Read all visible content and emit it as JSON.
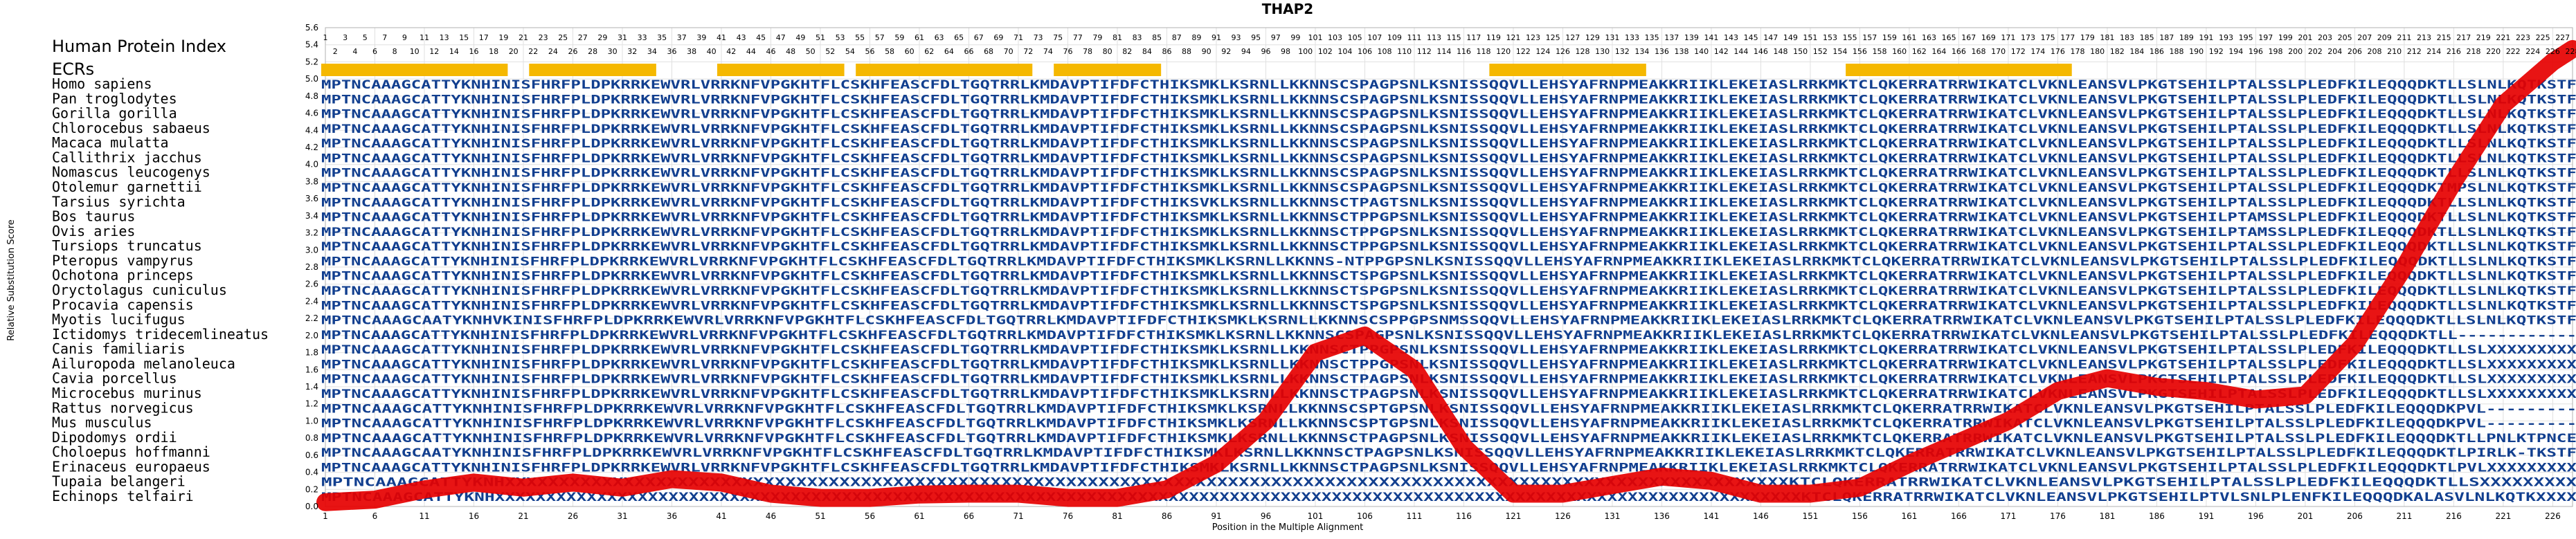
{
  "chart_data": {
    "type": "line",
    "title": "THAP2",
    "xlabel": "Position in the Multiple Alignment",
    "ylabel": "Relative Substitution Score",
    "xlim": [
      1,
      228
    ],
    "ylim": [
      0,
      5.6
    ],
    "grid": true,
    "header_labels": {
      "hpi": "Human Protein Index",
      "ecrs": "ECRs"
    },
    "x_ticks": [
      1,
      6,
      11,
      16,
      21,
      26,
      31,
      36,
      41,
      46,
      51,
      56,
      61,
      66,
      71,
      76,
      81,
      86,
      91,
      96,
      101,
      106,
      111,
      116,
      121,
      126,
      131,
      136,
      141,
      146,
      151,
      156,
      161,
      166,
      171,
      176,
      181,
      186,
      191,
      196,
      201,
      206,
      211,
      216,
      221,
      226
    ],
    "y_ticks": [
      0,
      0.2,
      0.4,
      0.6,
      0.8,
      1.0,
      1.2,
      1.4,
      1.6,
      1.8,
      2.0,
      2.2,
      2.4,
      2.6,
      2.8,
      3.0,
      3.2,
      3.4,
      3.6,
      3.8,
      4.0,
      4.2,
      4.4,
      4.6,
      4.8,
      5.0,
      5.2,
      5.4,
      5.6
    ],
    "hpi_range": [
      1,
      228
    ],
    "ecr_ranges": [
      [
        1,
        19
      ],
      [
        22,
        34
      ],
      [
        41,
        53
      ],
      [
        55,
        72
      ],
      [
        75,
        85
      ],
      [
        119,
        134
      ],
      [
        155,
        177
      ]
    ],
    "species": [
      {
        "name": "Homo sapiens",
        "sequence": "MPTNCAAAGCATTYKNHINISFHRFPLDPKRRKEWVRLVRRKNFVPGKHTFLCSKHFEASCFDLTGQTRRLKMDAVPTIFDFCTHIKSMKLKSRNLLKKNNSCSPAGPSNLKSNISSQQVLLEHSYAFRNPMEAKKRIIKLEKEIASLRRKMKTCLQKERRATRRWIKATCLVKNLEANSVLPKGTSEHILPTALSSLPLEDFKILEQQQDKTLLSLNLKQTKSTF"
      },
      {
        "name": "Pan troglodytes",
        "sequence": "MPTNCAAAGCATTYKNHINISFHRFPLDPKRRKEWVRLVRRKNFVPGKHTFLCSKHFEASCFDLTGQTRRLKMDAVPTIFDFCTHIKSMKLKSRNLLKKNNSCSPAGPSNLKSNISSQQVLLEHSYAFRNPMEAKKRIIKLEKEIASLRRKMKTCLQKERRATRRWIKATCLVKNLEANSVLPKGTSEHILPTALSSLPLEDFKILEQQQDKTLLSLNLKQTKSTF"
      },
      {
        "name": "Gorilla gorilla",
        "sequence": "MPTNCAAAGCATTYKNHINISFHRFPLDPKRRKEWVRLVRRKNFVPGKHTFLCSKHFEASCFDLTGQTRRLKMDAVPTIFDFCTHIKSMKLKSRNLLKKNNSCSPAGPSNLKSNISSQQVLLEHSYAFRNPMEAKKRIIKLEKEIASLRRKMKTCLQKERRATRRWIKATCLVKNLEANSVLPKGTSEHILPTALSSLPLEDFKILEQQQDKTLLSLNLKQTKSTF"
      },
      {
        "name": "Chlorocebus sabaeus",
        "sequence": "MPTNCAAAGCATTYKNHINISFHRFPLDPKRRKEWVRLVRRKNFVPGKHTFLCSKHFEASCFDLTGQTRRLKMDAVPTIFDFCTHIKSMKLKSRNLLKKNNSCSPAGPSNLKSNISSQQVLLEHSYAFRNPMEAKKRIIKLEKEIASLRRKMKTCLQKERRATRRWIKATCLVKNLEANSVLPKGTSEHILPTALSSLPLEDFKILEQQQDKTLLSLNLKQTKSTF"
      },
      {
        "name": "Macaca mulatta",
        "sequence": "MPTNCAAAGCATTYKNHINISFHRFPLDPKRRKEWVRLVRRKNFVPGKHTFLCSKHFEASCFDLTGQTRRLKMDAVPTIFDFCTHIKSMKLKSRNLLKKNNSCSPAGPSNLKSNISSQQVLLEHSYAFRNPMEAKKRIIKLEKEIASLRRKMKTCLQKERRATRRWIKATCLVKNLEANSVLPKGTSEHILPTALSSLPLEDFKILEQQQDKTLLSLNLKQTKSTF"
      },
      {
        "name": "Callithrix jacchus",
        "sequence": "MPTNCAAAGCATTYKNHINISFHRFPLDPKRRKEWVRLVRRKNFVPGKHTFLCSKHFEASCFDLTGQTRRLKMDAVPTIFDFCTHIKSMKLKSRNLLKKNNSCSPAGPSNLKSNISSQQVLLEHSYAFRNPMEAKKRIIKLEKEIASLRRKMKTCLQKERRATRRWIKATCLVKNLEANSVLPKGTSEHILPTALSSLPLEDFKILEQQQDKTLLSLNLKQTKSTF"
      },
      {
        "name": "Nomascus leucogenys",
        "sequence": "MPTNCAAAGCATTYKNHINISFHRFPLDPKRRKEWVRLVRRKNFVPGKHTFLCSKHFEASCFDLTGQTRRLKMDAVPTIFDFCTHIKSMKLKSRNLLKKNNSCSPAGPSNLKSNISSQQVLLEHSYAFRNPMEAKKRIIKLEKEIASLRRKMKTCLQKERRATRRWIKATCLVKNLEANSVLPKGTSEHILPTALSSLPLEDFKILEQQQDKTLLSLNLKQTKSTF"
      },
      {
        "name": "Otolemur garnettii",
        "sequence": "MPTNCAAAGCATTYKNHINISFHRFPLDPKRRKEWVRLVRRKNFVPGKHTFLCSKHFEASCFDLTGQTRRLKMDAVPTIFDFCTHIKSMKLKSRNLLKKNNSCSPAGPSNLKSNISSQQVLLEHSYAFRNPMEAKKRIIKLEKEIASLRRKMKTCLQKERRATRRWIKATCLVKNLEANSVLPKGTSEHILPTALSSLPLEDFKILEQQQDKTMPSLNLKQTKSTF"
      },
      {
        "name": "Tarsius syrichta",
        "sequence": "MPTNCAAAGCATTYKNHINISFHRFPLDPKRRKEWVRLVRRKNFVPGKHTFLCSKHFEASCFDLTGQTRRLKMDAVPTIFDFCTHIKSVKLKSRNLLKKNNSCTPAGTSNLKSNISSQQVLLEHSYAFRNPMEAKKRIIKLEKEIASLRRKMKTCLQKERRATRRWIKATCLVKNLEANSVLPKGTSEHILPTALSSLPLEDFKILEQQQDKTLLSLNLKQTKSTF"
      },
      {
        "name": "Bos taurus",
        "sequence": "MPTNCAAAGCATTYKNHINISFHRFPLDPKRRKEWVRLVRRKNFVPGKHTFLCSKHFEASCFDLTGQTRRLKMDAVPTIFDFCTHIKSMKLKSRNLLKKNNSCTPPGPSNLKSNISSQQVLLEHSYAFRNPMEAKKRIIKLEKEIASLRRKMKTCLQKERRATRRWIKATCLVKNLEANSVLPKGTSEHILPTAMSSLPLEDFKILEQQQDKTLLSLNLKQTKSTF"
      },
      {
        "name": "Ovis aries",
        "sequence": "MPTNCAAAGCATTYKNHINISFHRFPLDPKRRKEWVRLVRRKNFVPGKHTFLCSKHFEASCFDLTGQTRRLKMDAVPTIFDFCTHIKSMKLKSRNLLKKNNSCTPPGPSNLKSNISSQQVLLEHSYAFRNPMEAKKRIIKLEKEIASLRRKMKTCLQKERRATRRWIKATCLVKNLEANSVLPKGTSEHILPTAMSSLPLEDFKILEQQQDKTLLSLNLKQTKSTF"
      },
      {
        "name": "Tursiops truncatus",
        "sequence": "MPTNCAAAGCATTYKNHINISFHRFPLDPKRRKEWVRLVRRKNFVPGKHTFLCSKHFEASCFDLTGQTRRLKMDAVPTIFDFCTHIKSMKLKSRNLLKKNNSCTPPGPSNLKSNISSQQVLLEHSYAFRNPMEAKKRIIKLEKEIASLRRKMKTCLQKERRATRRWIKATCLVKNLEANSVLPKGTSEHILPTALSSLPLEDFKILEQQQDKTLLSLNLKQTKSTF"
      },
      {
        "name": "Pteropus vampyrus",
        "sequence": "MPTNCAAAGCATTYKNHINISFHRFPLDPKRRKEWVRLVRRKNFVPGKHTFLCSKHFEASCFDLTGQTRRLKMDAVPTIFDFCTHIKSMKLKSRNLLKKNNS-NTPPGPSNLKSNISSQQVLLEHSYAFRNPMEAKKRIIKLEKEIASLRRKMKTCLQKERRATRRWIKATCLVKNLEANSVLPKGTSEHILPTALSSLPLEDFKILEQQQDKTLLSLNLKQTKSTF"
      },
      {
        "name": "Ochotona princeps",
        "sequence": "MPTNCAAAGCATTYKNHINISFHRFPLDPKRRKEWVRLVRRKNFVPGKHTFLCSKHFEASCFDLTGQTRRLKMDAVPTIFDFCTHIKSMKLKSRNLLKKNNSCTSPGPSNLKSNISSQQVLLEHSYAFRNPMEAKKRIIKLEKEIASLRRKMKTCLQKERRATRRWIKATCLVKNLEANSVLPKGTSEHILPTALSSLPLEDFKILEQQQDKTLLSLNLKQTKSTF"
      },
      {
        "name": "Oryctolagus cuniculus",
        "sequence": "MPTNCAAAGCATTYKNHINISFHRFPLDPKRRKEWVRLVRRKNFVPGKHTFLCSKHFEASCFDLTGQTRRLKMDAVPTIFDFCTHIKSMKLKSRNLLKKNNSCTSPGPSNLKSNISSQQVLLEHSYAFRNPMEAKKRIIKLEKEIASLRRKMKTCLQKERRATRRWIKATCLVKNLEANSVLPKGTSEHILPTALSSLPLEDFKILEQQQDKTLLSLNLKQTKSTF"
      },
      {
        "name": "Procavia capensis",
        "sequence": "MPTNCAAAGCATTYKNHINISFHRFPLDPKRRKEWVRLVRRKNFVPGKHTFLCSKHFEASCFDLTGQTRRLKMDAVPTIFDFCTHIKSMKLKSRNLLKKNNSCTSPGPSNLKSNISSQQVLLEHSYAFRNPMEAKKRIIKLEKEIASLRRKMKTCLQKERRATRRWIKATCLVKNLEANSVLPKGTSEHILPTALSSLPLEDFKILEQQQDKTLLSLNLKQTKSTF"
      },
      {
        "name": "Myotis lucifugus",
        "sequence": "MPTNCAAAGCAATYKNHVKINISFHRFPLDPKRRKEWVRLVRRKNFVPGKHTFLCSKHFEASCFDLTGQTRRLKMDAVPTIFDFCTHIKSMKLKSRNLLKKNNSCSPPGPSNMSSQQVLLEHSYAFRNPMEAKKRIIKLEKEIASLRRKMKTCLQKERRATRRWIKATCLVKNLEANSVLPKGTSEHILPTALSSLPLEDFKILEQQQDKTLLSLNLKQTKSTF"
      },
      {
        "name": "Ictidomys tridecemlineatus",
        "sequence": "MPTNCAAAGCATTYKNHINISFHRFPLDPKRRKEWVRLVRRKNFVPGKHTFLCSKHFEASCFDLTGQTRRLKMDAVPTIFDFCTHIKSMKLKSRNLLKKNNSCSPAGPSNLKSNISSQQVLLEHSYAFRNPMEAKKRIIKLEKEIASLRRKMKTCLQKERRATRRWIKATCLVKNLEANSVLPKGTSEHILPTALSSLPLEDFKILEQQQDKTLL------------"
      },
      {
        "name": "Canis familiaris",
        "sequence": "MPTNCAAAGCATTYKNHINISFHRFPLDPKRRKEWVRLVRRKNFVPGKHTFLCSKHFEASCFDLTGQTRRLKMDAVPTIFDFCTHIKSMKLKSRNLLKKNNSCTPPGPSNLKSNISSQQVLLEHSYAFRNPMEAKKRIIKLEKEIASLRRKMKTCLQKERRATRRWIKATCLVKNLEANSVLPKGTSEHILPTALSSLPLEDFKILEQQQDKTLLSLXXXXXXXXX"
      },
      {
        "name": "Ailuropoda melanoleuca",
        "sequence": "MPTNCAAAGCATTYKNHINISFHRFPLDPKRRKEWVRLVRRKNFVPGKHTFLCSKHFEASCFDLTGQTRRLKMDAVPTIFDFCTHIKSMKLKSRNLLKKNNSCTPPGPSNLKSNISSQQVLLEHSYAFRNPMEAKKRIIKLEKEIASLRRKMKTCLQKERRATRRWIKATCLVKNLEANSVLPKGTSEHILPTALSSLPLEDFKILEQQQDKTLLSLXXXXXXXXX"
      },
      {
        "name": "Cavia porcellus",
        "sequence": "MPTNCAAAGCATTYKNHINISFHRFPLDPKRRKEWVRLVRRKNFVPGKHTFLCSKHFEASCFDLTGQTRRLKMDAVPTIFDFCTHIKSMKLKSRNLLKKNNSCTPAGPSNLKSNISSQQVLLEHSYAFRNPMEAKKRIIKLEKEIASLRRKMKTCLQKERRATRRWIKATCLVKNLEANSVLPKGTSEHILPTALSSLPLEDFKILEQQQDKTLLSLXXXXXXXXX"
      },
      {
        "name": "Microcebus murinus",
        "sequence": "MPTNCAAAGCATTYKNHINISFHRFPLDPKRRKEWVRLVRRKNFVPGKHTFLCSKHFEASCFDLTGQTRRLKMDAVPTIFDFCTHIKSMKLKSRNLLKKNNSCTPAGPSNLKSNISSQQVLLEHSYAFRNPMEAKKRIIKLEKEIASLRRKMKTCLQKERRATRRWIKATCLVKNLEANSVLPKGTSEHILPTALSSLPLEDFKILEQQQDKTLLSLXXXXXXXXX"
      },
      {
        "name": "Rattus norvegicus",
        "sequence": "MPTNCAAAGCATTYKNHINISFHRFPLDPKRRKEWVRLVRRKNFVPGKHTFLCSKHFEASCFDLTGQTRRLKMDAVPTIFDFCTHIKSMKLKSRNLLKKNNSCSPTGPSNLKSNISSQQVLLEHSYAFRNPMEAKKRIIKLEKEIASLRRKMKTCLQKERRATRRWIKATCLVKNLEANSVLPKGTSEHILPTALSSLPLEDFKILEQQQDKPVL---------"
      },
      {
        "name": "Mus musculus",
        "sequence": "MPTNCAAAGCATTYKNHINISFHRFPLDPKRRKEWVRLVRRKNFVPGKHTFLCSKHFEASCFDLTGQTRRLKMDAVPTIFDFCTHIKSMKLKSRNLLKKNNSCSPTGPSNLKSNISSQQVLLEHSYAFRNPMEAKKRIIKLEKEIASLRRKMKTCLQKERRATRRWIKATCLVKNLEANSVLPKGTSEHILPTALSSLPLEDFKILEQQQDKPVL---------"
      },
      {
        "name": "Dipodomys ordii",
        "sequence": "MPTNCAAAGCATTYKNHINISFHRFPLDPKRRKEWVRLVRRKNFVPGKHTFLCSKHFEASCFDLTGQTRRLKMDAVPTIFDFCTHIKSMKLKSRNLLKKNNSCTPAGPSNLKSNISSQQVLLEHSYAFRNPMEAKKRIIKLEKEIASLRRKMKTCLQKERRATRRWIKATCLVKNLEANSVLPKGTSEHILPTALSSLPLEDFKILEQQQDKTLLPNLKTPNCE"
      },
      {
        "name": "Choloepus hoffmanni",
        "sequence": "MPTNCAAAGCAATYKNHINISFHRFPLDPKRRKEWVRLVRRKNFVPGKHTFLCSKHFEASCFDLTGQTRRLKMDAVPTIFDFCTHIKSMKLKSRNLLKKNNSCTPAGPSNLKSNISSQQVLLEHSYAFRNPMEAKKRIIKLEKEIASLRRKMKTCLQKERRATRRWIKATCLVKNLEANSVLPKGTSEHILPTALSSLPLEDFKILEQQQDKTLPIRLK-TKSTF"
      },
      {
        "name": "Erinaceus europaeus",
        "sequence": "MPTNCAAAGCATTYKNHINISFHRFPLDPKRRKEWVRLVRRKNFVPGKHTFLCSKHFEASCFDLTGQTRRLKMDAVPTIFDFCTHIKSMKLKSRNLLKKNNSCTPAGPSNLKSNISSQQVLLEHSYAFRNPMEAKKRIIKLEKEIASLRRKMKTCLQKERRATRRWIKATCLVKNLEANSVLPKGTSEHILPTALSSLPLEDFKILEQQQDKTLPVLXXXXXXXXX"
      },
      {
        "name": "Tupaia belangeri",
        "sequence": "MPTNCAAAGCATTYKNHXXXXXXXXXXXXXXXXXXXXXXXXXXXXXXXXXXXXXXXXXXXXXXXXXXXXXXXXXXXXXXXXXXXXXXXXXXXXXXXXXXXXXXXXXXXXXXXXXXXXXXXXXXXXXXXXXXXXXXXKTCLQKERRATRRWIKATCLVKNLEANSVLPKGTSEHILPTALSSLPLEDFKILEQQQDKTLLSXXXXXXXXX"
      },
      {
        "name": "Echinops telfairi",
        "sequence": "MPTNCAAAGCATTYKNHXXXXXXXXXXXXXXXXXXXXXXXXXXXXXXXXXXXXXXXXXXXXXXXXXXXXXXXXXXXXXXXXXXXXXXXXXXXXXXXXXXXXXXXXXXXXXXXXXXXXXXXXXXXXXXXXXXXXXXXXXXXXXXXXKTCLQKERRATRRWIKATCLVKNLEANSVLPKGTSEHILPTVLSNLPLENFKILEQQQDKALASVLNLKQTKXXXX"
      }
    ],
    "series": [
      {
        "x": [
          1,
          6,
          11,
          16,
          21,
          26,
          31,
          36,
          41,
          46,
          51,
          56,
          61,
          66,
          71,
          76,
          81,
          86,
          91,
          96,
          101,
          106,
          111,
          116,
          121,
          126,
          131,
          136,
          141,
          146,
          151,
          156,
          161,
          166,
          171,
          176,
          181,
          186,
          191,
          196,
          201,
          206,
          211,
          216,
          221,
          226,
          228
        ],
        "values": [
          0.05,
          0.08,
          0.2,
          0.28,
          0.22,
          0.28,
          0.22,
          0.32,
          0.28,
          0.15,
          0.1,
          0.1,
          0.14,
          0.15,
          0.15,
          0.1,
          0.1,
          0.2,
          0.5,
          1.0,
          1.8,
          2.0,
          1.6,
          0.7,
          0.15,
          0.15,
          0.25,
          0.35,
          0.3,
          0.15,
          0.15,
          0.22,
          0.5,
          0.75,
          1.0,
          1.35,
          1.5,
          1.4,
          1.35,
          1.25,
          1.3,
          1.9,
          2.8,
          3.8,
          4.7,
          5.2,
          5.35
        ]
      }
    ]
  }
}
